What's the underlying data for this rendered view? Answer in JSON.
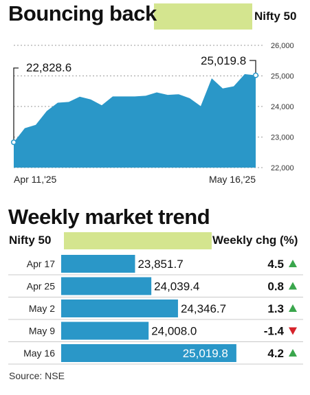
{
  "top": {
    "title": "Bouncing back",
    "index_label": "Nifty 50"
  },
  "bottom": {
    "title": "Weekly market trend",
    "index_label": "Nifty 50",
    "change_label": "Weekly chg (%)"
  },
  "source": "Source: NSE",
  "colors": {
    "bar": "#2a97c8",
    "highlight": "#d4e58f",
    "up": "#3aa64c",
    "down": "#d6222a"
  },
  "chart_data": [
    {
      "type": "area",
      "title": "Bouncing back",
      "series_name": "Nifty 50",
      "ylim": [
        22000,
        26000
      ],
      "yticks": [
        22000,
        23000,
        24000,
        25000,
        26000
      ],
      "ytick_labels": [
        "22,000",
        "23,000",
        "24,000",
        "25,000",
        "26,000"
      ],
      "x_start_label": "Apr 11,'25",
      "x_end_label": "May 16,'25",
      "values": [
        22828.6,
        23290,
        23400,
        23850,
        24125,
        24150,
        24320,
        24230,
        24040,
        24330,
        24330,
        24330,
        24350,
        24460,
        24380,
        24400,
        24270,
        24010,
        24920,
        24590,
        24660,
        25060,
        25019.8
      ],
      "annotations": [
        {
          "index": 0,
          "text": "22,828.6"
        },
        {
          "index": 22,
          "text": "25,019.8"
        }
      ]
    },
    {
      "type": "bar",
      "title": "Weekly market trend",
      "xlim": [
        23000,
        25100
      ],
      "rows": [
        {
          "date": "Apr 17",
          "value": 23851.7,
          "value_label": "23,851.7",
          "change": 4.5,
          "change_label": "4.5",
          "dir": "up"
        },
        {
          "date": "Apr 25",
          "value": 24039.4,
          "value_label": "24,039.4",
          "change": 0.8,
          "change_label": "0.8",
          "dir": "up"
        },
        {
          "date": "May 2",
          "value": 24346.7,
          "value_label": "24,346.7",
          "change": 1.3,
          "change_label": "1.3",
          "dir": "up"
        },
        {
          "date": "May 9",
          "value": 24008.0,
          "value_label": "24,008.0",
          "change": -1.4,
          "change_label": "-1.4",
          "dir": "down"
        },
        {
          "date": "May 16",
          "value": 25019.8,
          "value_label": "25,019.8",
          "change": 4.2,
          "change_label": "4.2",
          "dir": "up"
        }
      ]
    }
  ]
}
